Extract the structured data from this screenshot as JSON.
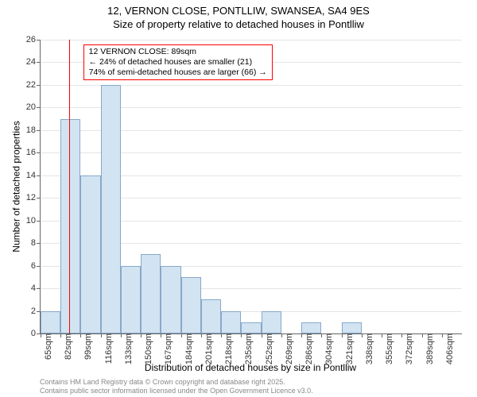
{
  "title_line1": "12, VERNON CLOSE, PONTLLIW, SWANSEA, SA4 9ES",
  "title_line2": "Size of property relative to detached houses in Pontlliw",
  "y_axis_label": "Number of detached properties",
  "x_axis_label": "Distribution of detached houses by size in Pontlliw",
  "footer_line1": "Contains HM Land Registry data © Crown copyright and database right 2025.",
  "footer_line2": "Contains public sector information licensed under the Open Government Licence v3.0.",
  "annotation_line1": "12 VERNON CLOSE: 89sqm",
  "annotation_line2": "← 24% of detached houses are smaller (21)",
  "annotation_line3": "74% of semi-detached houses are larger (66) →",
  "chart": {
    "type": "histogram",
    "ylim": [
      0,
      26
    ],
    "ytick_step": 2,
    "background_color": "#ffffff",
    "grid_color": "#e5e5e5",
    "bar_fill": "#d2e3f2",
    "bar_border": "#87a9c9",
    "marker_line_color": "#ff0000",
    "annotation_border": "#ff0000",
    "marker_x_value": 89,
    "axis_font_size": 11,
    "title_font_size": 13,
    "label_font_size": 12,
    "x_start": 65,
    "x_step": 17,
    "x_unit": "sqm",
    "categories": [
      "65sqm",
      "82sqm",
      "99sqm",
      "116sqm",
      "133sqm",
      "150sqm",
      "167sqm",
      "184sqm",
      "201sqm",
      "218sqm",
      "235sqm",
      "252sqm",
      "269sqm",
      "286sqm",
      "304sqm",
      "321sqm",
      "338sqm",
      "355sqm",
      "372sqm",
      "389sqm",
      "406sqm"
    ],
    "values": [
      2,
      19,
      14,
      22,
      6,
      7,
      6,
      5,
      3,
      2,
      1,
      2,
      0,
      1,
      0,
      1,
      0,
      0,
      0,
      0,
      0
    ]
  }
}
